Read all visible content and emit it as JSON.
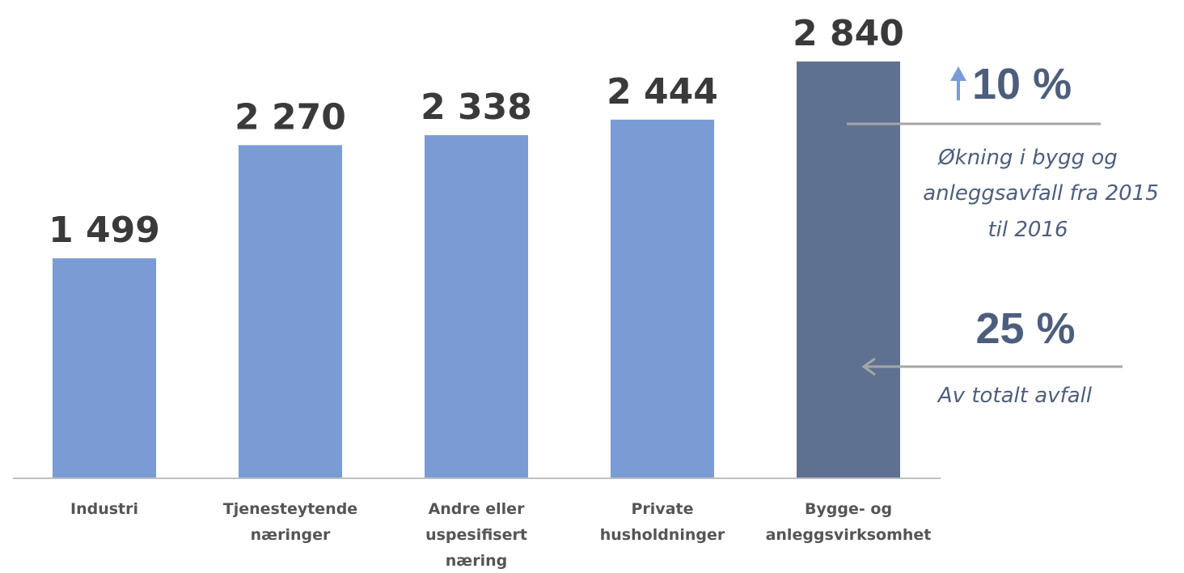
{
  "chart_data": {
    "type": "bar",
    "categories": [
      [
        "Industri"
      ],
      [
        "Tjenesteytende",
        "næringer"
      ],
      [
        "Andre eller",
        "uspesifisert",
        "næring"
      ],
      [
        "Private",
        "husholdninger"
      ],
      [
        "Bygge- og",
        "anleggsvirksomhet"
      ]
    ],
    "values": [
      1499,
      2270,
      2338,
      2444,
      2840
    ],
    "value_labels": [
      "1 499",
      "2 270",
      "2 338",
      "2 444",
      "2 840"
    ],
    "highlight_index": 4,
    "ylim": [
      0,
      2840
    ],
    "grid": false,
    "colors": {
      "bar": "#7b9bd4",
      "bar_highlight": "#5f7190",
      "axis": "#bfbfbf",
      "arrow_up": "#7b9bd4",
      "callout_line": "#a6a6a6"
    }
  },
  "callouts": {
    "increase": {
      "value": "10 %",
      "text_lines": [
        "Økning i bygg og",
        "anleggsavfall fra 2015",
        "til 2016"
      ]
    },
    "share": {
      "value": "25 %",
      "text": "Av totalt avfall"
    }
  }
}
